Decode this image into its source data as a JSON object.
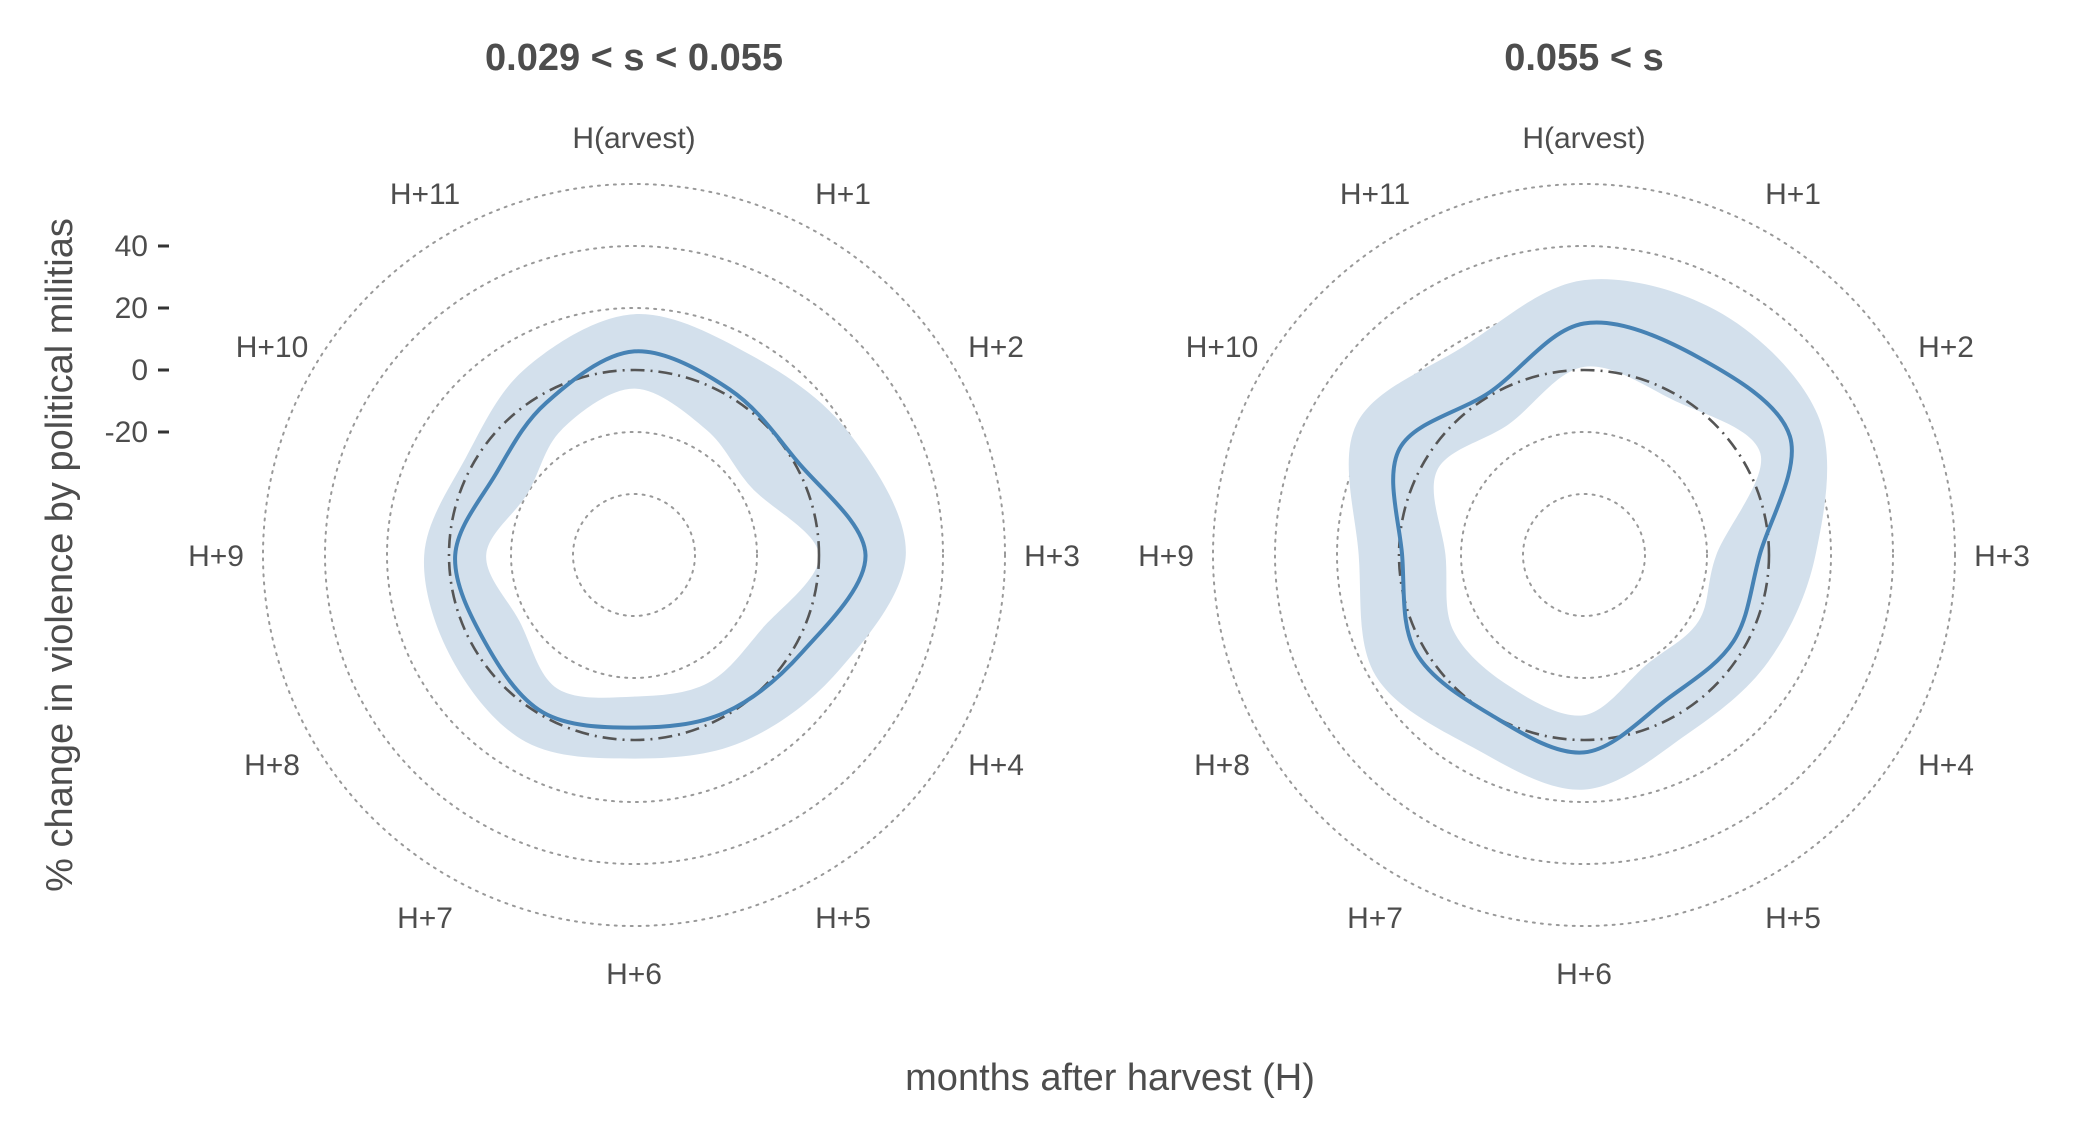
{
  "chart_data": [
    {
      "type": "polar-line",
      "title": "0.029 < s < 0.055",
      "theta_labels": [
        "H(arvest)",
        "H+1",
        "H+2",
        "H+3",
        "H+4",
        "H+5",
        "H+6",
        "H+7",
        "H+8",
        "H+9",
        "H+10",
        "H+11"
      ],
      "radial_ticks": [
        -20,
        0,
        20,
        40
      ],
      "radial_range": [
        -60,
        60
      ],
      "baseline": 0,
      "series": [
        {
          "values": [
            6,
            2,
            1,
            15,
            3,
            -1,
            -4,
            -1,
            -4,
            -2,
            -8,
            -3
          ],
          "ci_upper": [
            18,
            15,
            20,
            28,
            16,
            10,
            6,
            10,
            8,
            8,
            3,
            10
          ],
          "ci_lower": [
            -6,
            -13,
            -16,
            0,
            -12,
            -12,
            -14,
            -10,
            -17,
            -12,
            -20,
            -13
          ]
        }
      ],
      "colors": {
        "line": "#4682b4",
        "band": "#d3e0ec",
        "baseline": "#555555",
        "grid": "#999999"
      }
    },
    {
      "type": "polar-line",
      "title": "0.055 < s",
      "theta_labels": [
        "H(arvest)",
        "H+1",
        "H+2",
        "H+3",
        "H+4",
        "H+5",
        "H+6",
        "H+7",
        "H+8",
        "H+9",
        "H+10",
        "H+11"
      ],
      "radial_ticks": [
        -20,
        0,
        20,
        40
      ],
      "radial_range": [
        -60,
        60
      ],
      "baseline": 0,
      "series": [
        {
          "values": [
            15,
            14,
            17,
            -3,
            -4,
            -6,
            4,
            0,
            3,
            -1,
            9,
            1
          ],
          "ci_upper": [
            29,
            30,
            28,
            15,
            9,
            7,
            16,
            12,
            18,
            13,
            25,
            18
          ],
          "ci_lower": [
            1,
            -2,
            6,
            -17,
            -17,
            -19,
            -8,
            -11,
            -11,
            -15,
            -5,
            -11
          ]
        }
      ],
      "colors": {
        "line": "#4682b4",
        "band": "#d3e0ec",
        "baseline": "#555555",
        "grid": "#999999"
      }
    }
  ],
  "axes": {
    "ylabel": "% change in violence by political militias",
    "xlabel": "months after harvest (H)"
  }
}
